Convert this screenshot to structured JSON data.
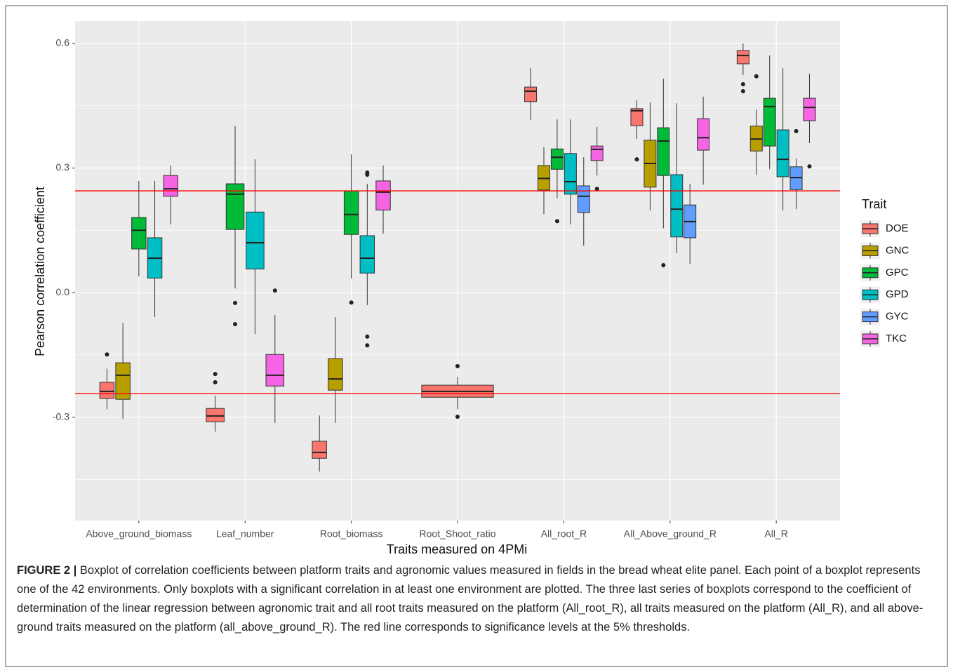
{
  "chart_data": {
    "type": "boxplot",
    "x_label": "Traits measured on 4PMi",
    "y_label": "Pearson correlation coefficient",
    "legend_title": "Trait",
    "legend_position": "right",
    "grid": true,
    "categories": [
      "Above_ground_biomass",
      "Leaf_number",
      "Root_biomass",
      "Root_Shoot_ratio",
      "All_root_R",
      "All_Above_ground_R",
      "All_R"
    ],
    "ylim": [
      -0.549,
      0.654
    ],
    "yticks": [
      {
        "value": -0.3,
        "label": "-0.3"
      },
      {
        "value": 0,
        "label": "0.0"
      },
      {
        "value": 0.3,
        "label": "0.3"
      },
      {
        "value": 0.6,
        "label": "0.6"
      }
    ],
    "minor_yticks": [
      -0.45,
      -0.15,
      0.15,
      0.45
    ],
    "reference_lines": [
      0.245,
      -0.243
    ],
    "reference_color": "#ff0000",
    "series": [
      {
        "name": "DOE",
        "color": "#F8766D",
        "values": [
          {
            "lower": -0.281,
            "q1": -0.255,
            "median": -0.238,
            "q3": -0.216,
            "upper": -0.183,
            "outliers": [
              -0.149
            ]
          },
          {
            "lower": -0.335,
            "q1": -0.311,
            "median": -0.297,
            "q3": -0.279,
            "upper": -0.248,
            "outliers": [
              -0.196,
              -0.216
            ]
          },
          {
            "lower": -0.431,
            "q1": -0.399,
            "median": -0.385,
            "q3": -0.358,
            "upper": -0.296,
            "outliers": []
          },
          {
            "lower": -0.281,
            "q1": -0.252,
            "median": -0.238,
            "q3": -0.223,
            "upper": -0.203,
            "outliers": [
              -0.177,
              -0.299
            ]
          },
          {
            "lower": 0.416,
            "q1": 0.46,
            "median": 0.485,
            "q3": 0.495,
            "upper": 0.541,
            "outliers": []
          },
          {
            "lower": 0.37,
            "q1": 0.402,
            "median": 0.438,
            "q3": 0.443,
            "upper": 0.463,
            "outliers": [
              0.321
            ]
          },
          {
            "lower": 0.524,
            "q1": 0.551,
            "median": 0.571,
            "q3": 0.583,
            "upper": 0.6,
            "outliers": [
              0.502,
              0.485
            ]
          }
        ]
      },
      {
        "name": "GNC",
        "color": "#B79F00",
        "values": [
          {
            "lower": -0.304,
            "q1": -0.257,
            "median": -0.199,
            "q3": -0.169,
            "upper": -0.073,
            "outliers": []
          },
          null,
          {
            "lower": -0.314,
            "q1": -0.235,
            "median": -0.208,
            "q3": -0.159,
            "upper": -0.059,
            "outliers": []
          },
          null,
          {
            "lower": 0.189,
            "q1": 0.247,
            "median": 0.275,
            "q3": 0.306,
            "upper": 0.35,
            "outliers": []
          },
          {
            "lower": 0.198,
            "q1": 0.254,
            "median": 0.311,
            "q3": 0.367,
            "upper": 0.458,
            "outliers": []
          },
          {
            "lower": 0.284,
            "q1": 0.341,
            "median": 0.37,
            "q3": 0.401,
            "upper": 0.441,
            "outliers": [
              0.521
            ]
          }
        ]
      },
      {
        "name": "GPC",
        "color": "#00BA38",
        "values": [
          {
            "lower": 0.039,
            "q1": 0.105,
            "median": 0.15,
            "q3": 0.181,
            "upper": 0.269,
            "outliers": []
          },
          {
            "lower": 0.01,
            "q1": 0.152,
            "median": 0.237,
            "q3": 0.262,
            "upper": 0.401,
            "outliers": [
              -0.025,
              -0.076
            ]
          },
          {
            "lower": 0.034,
            "q1": 0.14,
            "median": 0.188,
            "q3": 0.245,
            "upper": 0.333,
            "outliers": [
              -0.024
            ]
          },
          null,
          {
            "lower": 0.228,
            "q1": 0.297,
            "median": 0.326,
            "q3": 0.346,
            "upper": 0.417,
            "outliers": [
              0.172
            ]
          },
          {
            "lower": 0.155,
            "q1": 0.282,
            "median": 0.365,
            "q3": 0.397,
            "upper": 0.515,
            "outliers": [
              0.066
            ]
          },
          {
            "lower": 0.297,
            "q1": 0.353,
            "median": 0.448,
            "q3": 0.468,
            "upper": 0.571,
            "outliers": []
          }
        ]
      },
      {
        "name": "GPD",
        "color": "#00BFC4",
        "values": [
          {
            "lower": -0.059,
            "q1": 0.035,
            "median": 0.083,
            "q3": 0.132,
            "upper": 0.269,
            "outliers": []
          },
          {
            "lower": -0.1,
            "q1": 0.057,
            "median": 0.12,
            "q3": 0.194,
            "upper": 0.321,
            "outliers": []
          },
          {
            "lower": -0.03,
            "q1": 0.047,
            "median": 0.083,
            "q3": 0.137,
            "upper": 0.262,
            "outliers": [
              0.289,
              0.284,
              -0.106,
              -0.127
            ]
          },
          null,
          {
            "lower": 0.164,
            "q1": 0.237,
            "median": 0.267,
            "q3": 0.335,
            "upper": 0.417,
            "outliers": []
          },
          {
            "lower": 0.095,
            "q1": 0.134,
            "median": 0.201,
            "q3": 0.284,
            "upper": 0.456,
            "outliers": []
          },
          {
            "lower": 0.198,
            "q1": 0.279,
            "median": 0.321,
            "q3": 0.392,
            "upper": 0.541,
            "outliers": []
          }
        ]
      },
      {
        "name": "GYC",
        "color": "#619CFF",
        "values": [
          null,
          null,
          null,
          null,
          {
            "lower": 0.113,
            "q1": 0.193,
            "median": 0.232,
            "q3": 0.257,
            "upper": 0.326,
            "outliers": []
          },
          {
            "lower": 0.069,
            "q1": 0.132,
            "median": 0.171,
            "q3": 0.211,
            "upper": 0.262,
            "outliers": []
          },
          {
            "lower": 0.201,
            "q1": 0.248,
            "median": 0.277,
            "q3": 0.303,
            "upper": 0.323,
            "outliers": [
              0.389
            ]
          }
        ]
      },
      {
        "name": "TKC",
        "color": "#F564E3",
        "values": [
          {
            "lower": 0.164,
            "q1": 0.232,
            "median": 0.25,
            "q3": 0.282,
            "upper": 0.306,
            "outliers": []
          },
          {
            "lower": -0.314,
            "q1": -0.225,
            "median": -0.199,
            "q3": -0.149,
            "upper": -0.054,
            "outliers": [
              0.005
            ]
          },
          {
            "lower": 0.142,
            "q1": 0.199,
            "median": 0.242,
            "q3": 0.269,
            "upper": 0.306,
            "outliers": []
          },
          null,
          {
            "lower": 0.282,
            "q1": 0.318,
            "median": 0.345,
            "q3": 0.353,
            "upper": 0.399,
            "outliers": [
              0.25
            ]
          },
          {
            "lower": 0.26,
            "q1": 0.343,
            "median": 0.373,
            "q3": 0.419,
            "upper": 0.472,
            "outliers": []
          },
          {
            "lower": 0.36,
            "q1": 0.414,
            "median": 0.446,
            "q3": 0.468,
            "upper": 0.527,
            "outliers": [
              0.304
            ]
          }
        ]
      }
    ]
  },
  "caption": {
    "label": "FIGURE 2 |",
    "text": "Boxplot of correlation coefficients between platform traits and agronomic values measured in fields in the bread wheat elite panel. Each point of a boxplot represents one of the 42 environments. Only boxplots with a significant correlation in at least one environment are plotted. The three last series of boxplots correspond to the coefficient of determination of the linear regression between agronomic trait and all root traits measured on the platform (All_root_R), all traits measured on the platform (All_R), and all above-ground traits measured on the platform (all_above_ground_R). The red line corresponds to significance levels at the 5% thresholds."
  }
}
